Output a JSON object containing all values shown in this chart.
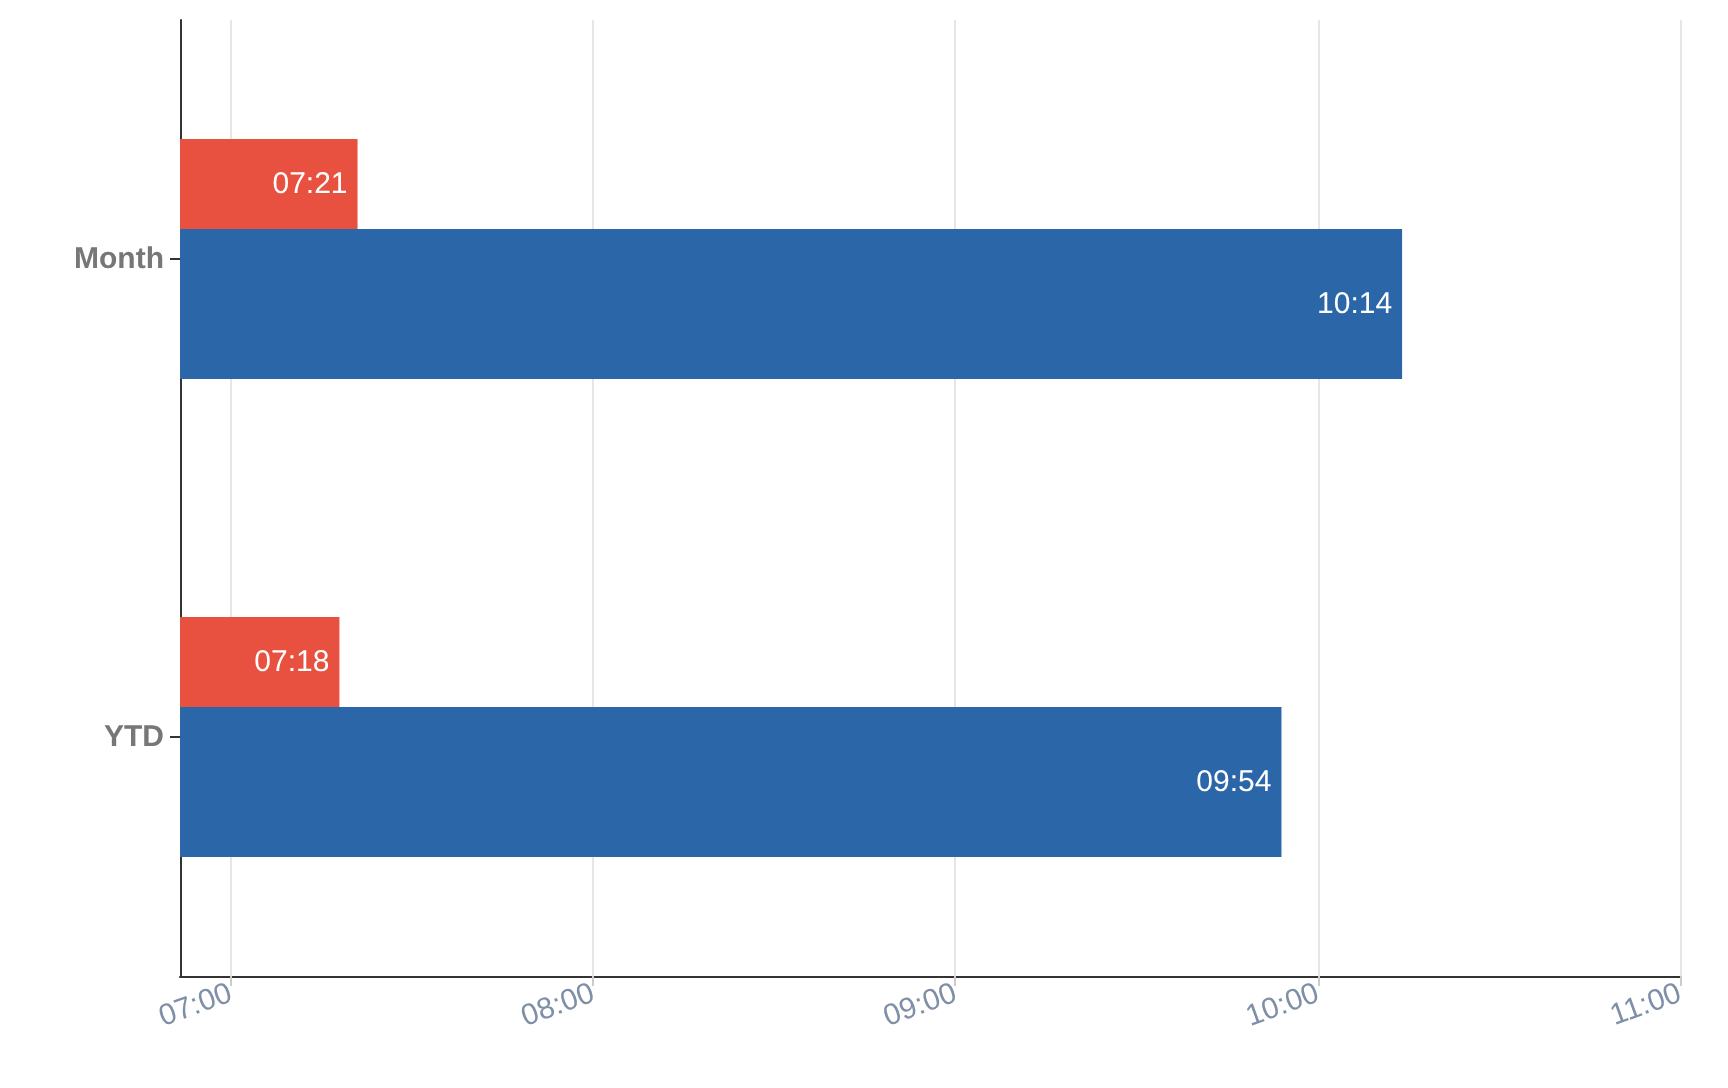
{
  "chart_data": {
    "type": "bar",
    "orientation": "horizontal",
    "categories": [
      "Month",
      "YTD"
    ],
    "series": [
      {
        "color": "#e8503f",
        "values": [
          7.35,
          7.3
        ],
        "value_labels": [
          "07:21",
          "07:18"
        ]
      },
      {
        "color": "#2a66a8",
        "values": [
          10.233,
          9.9
        ],
        "value_labels": [
          "10:14",
          "09:54"
        ]
      }
    ],
    "xlim": [
      6.86,
      11
    ],
    "xticks": [
      {
        "value": 7,
        "label": "07:00"
      },
      {
        "value": 8,
        "label": "08:00"
      },
      {
        "value": 9,
        "label": "09:00"
      },
      {
        "value": 10,
        "label": "10:00"
      },
      {
        "value": 11,
        "label": "11:00"
      }
    ],
    "grid": "x"
  }
}
